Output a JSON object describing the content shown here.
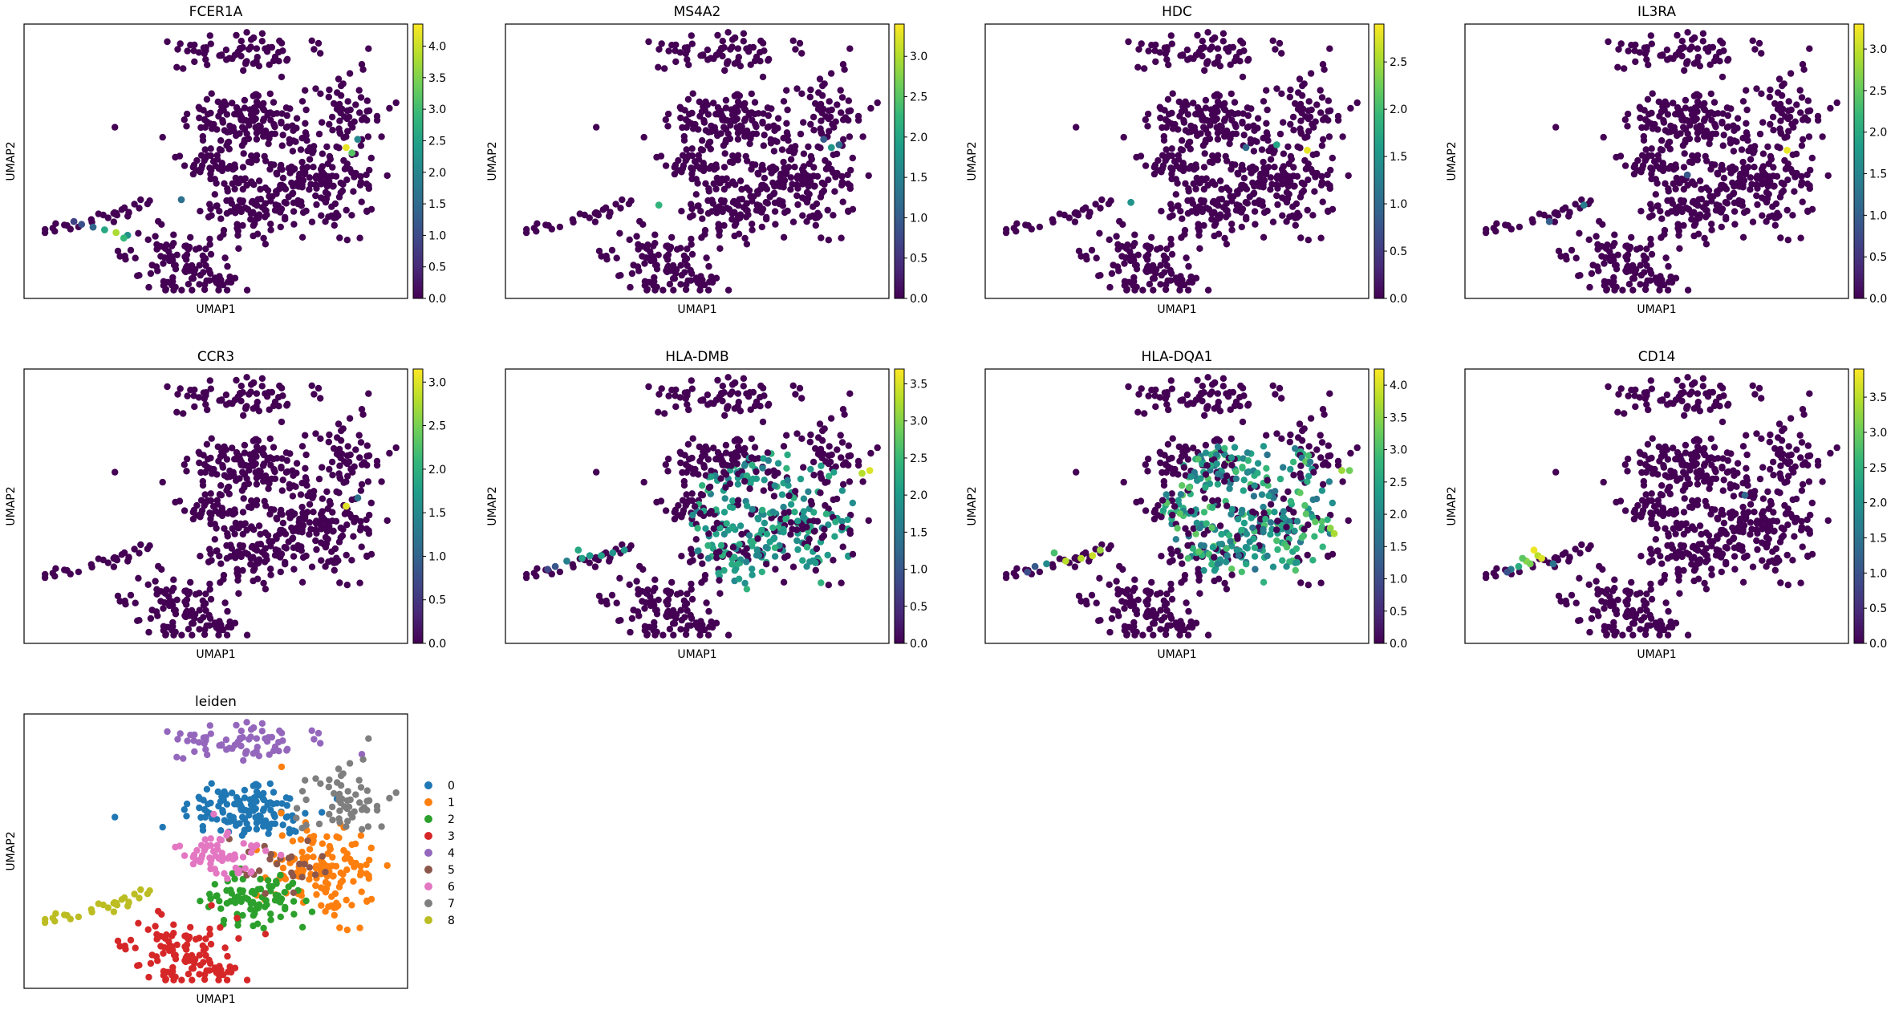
{
  "figure": {
    "colormap": "viridis",
    "viridis_stops": [
      "#440154",
      "#482878",
      "#3e4989",
      "#31688e",
      "#26828e",
      "#1f9e89",
      "#35b779",
      "#6ece58",
      "#b5de2b",
      "#fde725"
    ]
  },
  "chart_data": [
    {
      "type": "scatter",
      "title": "FCER1A",
      "xlabel": "UMAP1",
      "ylabel": "UMAP2",
      "grid": false,
      "colorbar": {
        "range": [
          0,
          4.35
        ],
        "ticks": [
          0.0,
          0.5,
          1.0,
          1.5,
          2.0,
          2.5,
          3.0,
          3.5,
          4.0
        ]
      },
      "highlights": [
        [
          0.13,
          0.72,
          0.85
        ],
        [
          0.18,
          0.74,
          1.4
        ],
        [
          0.21,
          0.75,
          2.6
        ],
        [
          0.24,
          0.76,
          3.8
        ],
        [
          0.27,
          0.77,
          2.2
        ],
        [
          0.26,
          0.78,
          2.9
        ],
        [
          0.15,
          0.73,
          1.1
        ],
        [
          0.84,
          0.45,
          4.2
        ],
        [
          0.855,
          0.47,
          3.2
        ],
        [
          0.87,
          0.42,
          2.0
        ],
        [
          0.41,
          0.64,
          1.6
        ]
      ]
    },
    {
      "type": "scatter",
      "title": "MS4A2",
      "xlabel": "UMAP1",
      "ylabel": "UMAP2",
      "grid": false,
      "colorbar": {
        "range": [
          0,
          3.4
        ],
        "ticks": [
          0.0,
          0.5,
          1.0,
          1.5,
          2.0,
          2.5,
          3.0
        ]
      },
      "highlights": [
        [
          0.4,
          0.66,
          2.2
        ],
        [
          0.85,
          0.45,
          1.8
        ],
        [
          0.87,
          0.44,
          1.2
        ],
        [
          0.83,
          0.42,
          1.0
        ]
      ]
    },
    {
      "type": "scatter",
      "title": "HDC",
      "xlabel": "UMAP1",
      "ylabel": "UMAP2",
      "grid": false,
      "colorbar": {
        "range": [
          0,
          2.9
        ],
        "ticks": [
          0.0,
          0.5,
          1.0,
          1.5,
          2.0,
          2.5
        ]
      },
      "highlights": [
        [
          0.38,
          0.65,
          1.5
        ],
        [
          0.84,
          0.46,
          2.8
        ],
        [
          0.76,
          0.44,
          1.7
        ],
        [
          0.68,
          0.45,
          1.0
        ]
      ]
    },
    {
      "type": "scatter",
      "title": "IL3RA",
      "xlabel": "UMAP1",
      "ylabel": "UMAP2",
      "grid": false,
      "colorbar": {
        "range": [
          0,
          3.3
        ],
        "ticks": [
          0.0,
          0.5,
          1.0,
          1.5,
          2.0,
          2.5,
          3.0
        ]
      },
      "highlights": [
        [
          0.84,
          0.46,
          3.2
        ],
        [
          0.31,
          0.66,
          1.4
        ],
        [
          0.22,
          0.72,
          1.0
        ],
        [
          0.58,
          0.55,
          0.9
        ]
      ]
    },
    {
      "type": "scatter",
      "title": "CCR3",
      "xlabel": "UMAP1",
      "ylabel": "UMAP2",
      "grid": false,
      "colorbar": {
        "range": [
          0,
          3.15
        ],
        "ticks": [
          0.0,
          0.5,
          1.0,
          1.5,
          2.0,
          2.5,
          3.0
        ]
      },
      "highlights": [
        [
          0.84,
          0.5,
          3.0
        ],
        [
          0.87,
          0.47,
          1.2
        ]
      ]
    },
    {
      "type": "scatter",
      "title": "HLA-DMB",
      "xlabel": "UMAP1",
      "ylabel": "UMAP2",
      "grid": false,
      "colorbar": {
        "range": [
          0,
          3.7
        ],
        "ticks": [
          0.0,
          0.5,
          1.0,
          1.5,
          2.0,
          2.5,
          3.0,
          3.5
        ]
      },
      "region": {
        "cx": 0.7,
        "cy": 0.56,
        "rx": 0.23,
        "ry": 0.26,
        "prob": 0.55,
        "vmin": 1.6,
        "vmax": 2.4
      },
      "highlights": [
        [
          0.95,
          0.37,
          3.5
        ],
        [
          0.93,
          0.38,
          3.3
        ],
        [
          0.13,
          0.72,
          1.0
        ],
        [
          0.16,
          0.7,
          1.6
        ],
        [
          0.19,
          0.66,
          2.2
        ],
        [
          0.22,
          0.68,
          2.0
        ],
        [
          0.25,
          0.68,
          2.1
        ],
        [
          0.28,
          0.67,
          1.9
        ],
        [
          0.31,
          0.66,
          2.0
        ],
        [
          0.11,
          0.73,
          0.8
        ],
        [
          0.2,
          0.69,
          2.1
        ]
      ]
    },
    {
      "type": "scatter",
      "title": "HLA-DQA1",
      "xlabel": "UMAP1",
      "ylabel": "UMAP2",
      "grid": false,
      "colorbar": {
        "range": [
          0,
          4.25
        ],
        "ticks": [
          0.0,
          0.5,
          1.0,
          1.5,
          2.0,
          2.5,
          3.0,
          3.5,
          4.0
        ]
      },
      "region": {
        "cx": 0.7,
        "cy": 0.52,
        "rx": 0.24,
        "ry": 0.26,
        "prob": 0.7,
        "vmin": 1.6,
        "vmax": 3.2
      },
      "highlights": [
        [
          0.93,
          0.37,
          3.6
        ],
        [
          0.95,
          0.37,
          3.3
        ],
        [
          0.9,
          0.58,
          3.5
        ],
        [
          0.91,
          0.6,
          3.7
        ],
        [
          0.13,
          0.72,
          1.2
        ],
        [
          0.16,
          0.71,
          2.0
        ],
        [
          0.18,
          0.67,
          3.0
        ],
        [
          0.21,
          0.7,
          3.8
        ],
        [
          0.25,
          0.69,
          3.8
        ],
        [
          0.28,
          0.68,
          3.9
        ],
        [
          0.3,
          0.66,
          3.6
        ],
        [
          0.11,
          0.74,
          1.0
        ]
      ]
    },
    {
      "type": "scatter",
      "title": "CD14",
      "xlabel": "UMAP1",
      "ylabel": "UMAP2",
      "grid": false,
      "colorbar": {
        "range": [
          0,
          3.9
        ],
        "ticks": [
          0.0,
          0.5,
          1.0,
          1.5,
          2.0,
          2.5,
          3.0,
          3.5
        ]
      },
      "highlights": [
        [
          0.12,
          0.73,
          1.6
        ],
        [
          0.14,
          0.72,
          2.4
        ],
        [
          0.16,
          0.7,
          3.2
        ],
        [
          0.18,
          0.66,
          3.8
        ],
        [
          0.19,
          0.68,
          3.5
        ],
        [
          0.2,
          0.69,
          3.7
        ],
        [
          0.15,
          0.69,
          2.9
        ],
        [
          0.17,
          0.71,
          3.1
        ],
        [
          0.23,
          0.71,
          1.5
        ],
        [
          0.11,
          0.74,
          1.0
        ],
        [
          0.73,
          0.46,
          1.3
        ]
      ]
    },
    {
      "type": "scatter",
      "title": "leiden",
      "xlabel": "UMAP1",
      "ylabel": "UMAP2",
      "grid": false,
      "legend": "right",
      "categories": [
        "0",
        "1",
        "2",
        "3",
        "4",
        "5",
        "6",
        "7",
        "8"
      ],
      "colors": [
        "#1f77b4",
        "#ff7f0e",
        "#2ca02c",
        "#d62728",
        "#9467bd",
        "#8c564b",
        "#e377c2",
        "#7f7f7f",
        "#bcbd22"
      ]
    }
  ]
}
